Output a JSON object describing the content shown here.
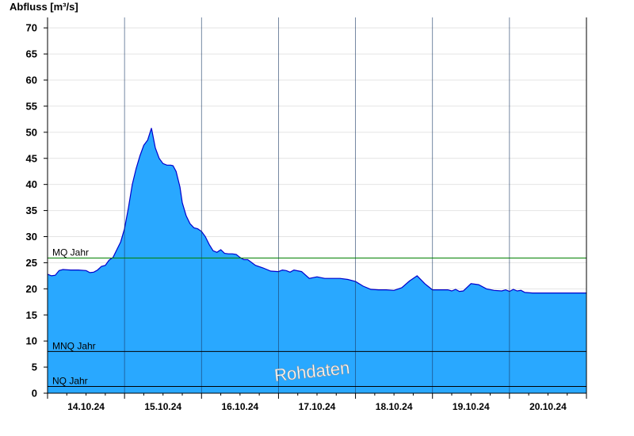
{
  "chart_data": {
    "type": "area",
    "ylabel": "Abfluss [m³/s]",
    "ylim": [
      0,
      72
    ],
    "yticks": [
      0,
      5,
      10,
      15,
      20,
      25,
      30,
      35,
      40,
      45,
      50,
      55,
      60,
      65,
      70
    ],
    "xlim": [
      0,
      7
    ],
    "xtick_labels": [
      "14.10.24",
      "15.10.24",
      "16.10.24",
      "17.10.24",
      "18.10.24",
      "19.10.24",
      "20.10.24"
    ],
    "grid": "horizontal",
    "fill_color": "#29A8FF",
    "line_color": "#0000CC",
    "series": [
      {
        "x": [
          0,
          0.05,
          0.1,
          0.15,
          0.2,
          0.3,
          0.4,
          0.5,
          0.55,
          0.6,
          0.65,
          0.7,
          0.75,
          0.8,
          0.85,
          0.9,
          0.95,
          1.0,
          1.05,
          1.1,
          1.15,
          1.2,
          1.25,
          1.3,
          1.35,
          1.4,
          1.45,
          1.5,
          1.55,
          1.6,
          1.63,
          1.67,
          1.72,
          1.75,
          1.8,
          1.85,
          1.9,
          1.95,
          2.0,
          2.05,
          2.1,
          2.15,
          2.2,
          2.25,
          2.3,
          2.35,
          2.4,
          2.45,
          2.5,
          2.55,
          2.6,
          2.7,
          2.8,
          2.9,
          3.0,
          3.05,
          3.1,
          3.15,
          3.2,
          3.3,
          3.4,
          3.5,
          3.6,
          3.7,
          3.8,
          3.9,
          4.0,
          4.1,
          4.2,
          4.3,
          4.4,
          4.5,
          4.6,
          4.7,
          4.8,
          4.9,
          5.0,
          5.1,
          5.15,
          5.2,
          5.25,
          5.3,
          5.35,
          5.4,
          5.5,
          5.6,
          5.7,
          5.8,
          5.9,
          5.95,
          6.0,
          6.05,
          6.1,
          6.15,
          6.2,
          6.3,
          6.4,
          6.5,
          6.6,
          6.7,
          6.8,
          6.9,
          7.0
        ],
        "values": [
          22.8,
          22.5,
          22.6,
          23.5,
          23.7,
          23.6,
          23.6,
          23.5,
          23.1,
          23.2,
          23.6,
          24.3,
          24.5,
          25.5,
          26.0,
          27.5,
          29.0,
          31.5,
          35.5,
          40.0,
          43.0,
          45.5,
          47.5,
          48.5,
          50.8,
          47.0,
          45.0,
          44.0,
          43.7,
          43.7,
          43.6,
          42.5,
          39.5,
          36.5,
          34.0,
          32.5,
          31.7,
          31.5,
          31.0,
          30.0,
          28.5,
          27.3,
          27.0,
          27.5,
          26.8,
          26.7,
          26.7,
          26.6,
          26.0,
          25.6,
          25.6,
          24.5,
          24.0,
          23.4,
          23.3,
          23.6,
          23.5,
          23.2,
          23.6,
          23.3,
          22.0,
          22.3,
          22.0,
          22.0,
          22.0,
          21.8,
          21.4,
          20.5,
          19.9,
          19.8,
          19.8,
          19.7,
          20.2,
          21.5,
          22.5,
          21.0,
          19.8,
          19.8,
          19.8,
          19.8,
          19.6,
          19.9,
          19.5,
          19.6,
          21.0,
          20.8,
          20.0,
          19.7,
          19.6,
          19.8,
          19.5,
          19.9,
          19.6,
          19.7,
          19.3,
          19.2,
          19.2,
          19.2,
          19.2,
          19.2,
          19.2,
          19.2,
          19.2
        ]
      }
    ],
    "reference_lines": [
      {
        "label": "MQ Jahr",
        "value": 25.9,
        "color": "#008000"
      },
      {
        "label": "MNQ Jahr",
        "value": 8.0,
        "color": "#000000"
      },
      {
        "label": "NQ Jahr",
        "value": 1.3,
        "color": "#000000"
      }
    ],
    "watermark": "Rohdaten"
  }
}
